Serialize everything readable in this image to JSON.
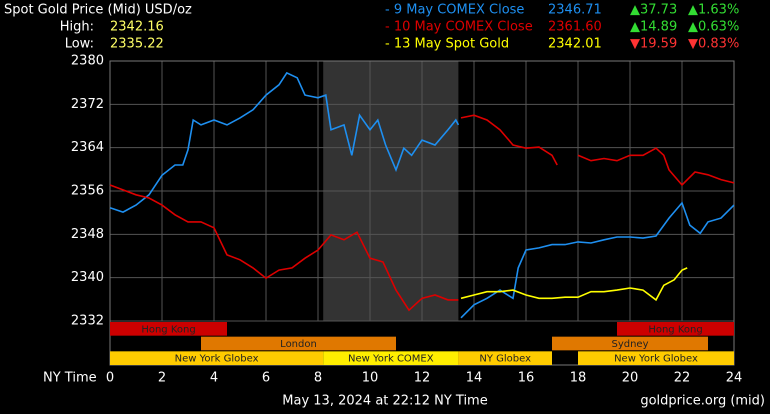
{
  "chart_data": {
    "type": "line",
    "title": "Spot Gold Price (Mid) USD/oz",
    "high_label": "High:",
    "high": "2342.16",
    "low_label": "Low:",
    "low": "2335.22",
    "x_label": "NY Time",
    "footer": "May 13, 2024 at 22:12 NY Time",
    "source": "goldprice.org (mid)",
    "xlim": [
      0,
      24
    ],
    "xticks": [
      0,
      2,
      4,
      6,
      8,
      10,
      12,
      14,
      16,
      18,
      20,
      22,
      24
    ],
    "ylim": [
      2332,
      2380
    ],
    "yticks": [
      2332,
      2340,
      2348,
      2356,
      2364,
      2372,
      2380
    ],
    "grid": true,
    "highlight": {
      "start": 8.2,
      "end": 13.4,
      "color": "#333333"
    },
    "series": [
      {
        "name": "- 9 May COMEX Close",
        "color": "#1e8ff0",
        "price": "2346.71",
        "change": "▲37.73",
        "change_pct": "▲1.63%",
        "change_color": "#33dd33",
        "x": [
          0,
          0.5,
          1,
          1.5,
          2,
          2.5,
          2.8,
          3,
          3.2,
          3.5,
          4,
          4.5,
          5,
          5.5,
          6,
          6.5,
          6.8,
          7.2,
          7.5,
          8,
          8.3,
          8.5,
          9,
          9.3,
          9.6,
          10,
          10.3,
          10.6,
          11,
          11.3,
          11.6,
          12,
          12.5,
          13,
          13.3,
          13.4,
          13.45,
          13.5,
          14,
          14.5,
          15,
          15.5,
          15.7,
          16,
          16.5,
          17,
          17.5,
          18,
          18.5,
          19,
          19.5,
          20,
          20.5,
          21,
          21.5,
          22,
          22.3,
          22.7,
          23,
          23.5,
          24
        ],
        "values": [
          2352.9,
          2352.1,
          2353.4,
          2355.3,
          2358.9,
          2360.8,
          2360.8,
          2363.6,
          2369.1,
          2368.2,
          2369.1,
          2368.2,
          2369.5,
          2371,
          2373.7,
          2375.6,
          2377.8,
          2376.9,
          2373.7,
          2373.2,
          2373.7,
          2367.3,
          2368.2,
          2362.6,
          2370,
          2367.3,
          2369.1,
          2364.5,
          2359.9,
          2363.9,
          2362.6,
          2365.4,
          2364.5,
          2367.3,
          2369.1,
          2368.2,
          null,
          2332.6,
          2335,
          2336.2,
          2337.7,
          2336.2,
          2341.8,
          2345.1,
          2345.5,
          2346.1,
          2346.1,
          2346.6,
          2346.4,
          2347,
          2347.5,
          2347.5,
          2347.3,
          2347.7,
          2351,
          2353.8,
          2349.7,
          2348.2,
          2350.3,
          2351,
          2353.4
        ]
      },
      {
        "name": "- 10 May COMEX Close",
        "color": "#dd0000",
        "price": "2361.60",
        "change": "▲14.89",
        "change_pct": "▲0.63%",
        "change_color": "#33dd33",
        "x": [
          0,
          0.5,
          1,
          1.5,
          2,
          2.5,
          3,
          3.5,
          4,
          4.5,
          5,
          5.5,
          6,
          6.5,
          7,
          7.5,
          8,
          8.5,
          9,
          9.5,
          10,
          10.5,
          11,
          11.5,
          12,
          12.5,
          13,
          13.4,
          13.45,
          13.5,
          14,
          14.5,
          15,
          15.5,
          16,
          16.5,
          17,
          17.2,
          17.4,
          18,
          18.5,
          19,
          19.5,
          20,
          20.5,
          21,
          21.3,
          21.5,
          22,
          22.5,
          23,
          23.5,
          24
        ],
        "values": [
          2357.1,
          2356.2,
          2355.3,
          2354.7,
          2353.4,
          2351.6,
          2350.3,
          2350.3,
          2349.2,
          2344.2,
          2343.3,
          2341.8,
          2339.9,
          2341.4,
          2341.8,
          2343.6,
          2345.1,
          2347.9,
          2347,
          2348.4,
          2343.6,
          2342.9,
          2337.7,
          2334,
          2336.2,
          2336.8,
          2335.9,
          2335.9,
          null,
          2369.5,
          2370,
          2369.1,
          2367.3,
          2364.5,
          2363.9,
          2364.1,
          2362.6,
          2360.8,
          null,
          2362.6,
          2361.6,
          2362,
          2361.6,
          2362.6,
          2362.6,
          2363.9,
          2362.6,
          2359.9,
          2357.1,
          2359.5,
          2359,
          2358.1,
          2357.5
        ]
      },
      {
        "name": "- 13 May Spot Gold",
        "color": "#ffff00",
        "price": "2342.01",
        "change": "▼19.59",
        "change_pct": "▼0.83%",
        "change_color": "#ff3333",
        "x": [
          13.5,
          14,
          14.5,
          15,
          15.5,
          16,
          16.5,
          17,
          17.5,
          18,
          18.5,
          19,
          19.5,
          20,
          20.5,
          21,
          21.3,
          21.7,
          22,
          22.2
        ],
        "values": [
          2336.2,
          2336.8,
          2337.4,
          2337.4,
          2337.7,
          2336.8,
          2336.2,
          2336.2,
          2336.4,
          2336.4,
          2337.4,
          2337.4,
          2337.7,
          2338.1,
          2337.7,
          2335.9,
          2338.6,
          2339.6,
          2341.4,
          2341.8
        ]
      }
    ],
    "session_rows": [
      [
        {
          "name": "Hong Kong",
          "start": 0,
          "end": 4.5,
          "color": "#cc0000"
        },
        {
          "name": "Hong Kong",
          "start": 19.5,
          "end": 24,
          "color": "#cc0000"
        }
      ],
      [
        {
          "name": "London",
          "start": 3.5,
          "end": 11,
          "color": "#e07800"
        },
        {
          "name": "Sydney",
          "start": 17,
          "end": 23,
          "color": "#e07800"
        }
      ],
      [
        {
          "name": "New York Globex",
          "start": 0,
          "end": 8.2,
          "color": "#ffcc00"
        },
        {
          "name": "New York COMEX",
          "start": 8.2,
          "end": 13.4,
          "color": "#ffee00"
        },
        {
          "name": "NY Globex",
          "start": 13.4,
          "end": 17,
          "color": "#ffcc00"
        },
        {
          "name": "New York Globex",
          "start": 18,
          "end": 24,
          "color": "#ffcc00"
        }
      ]
    ]
  }
}
